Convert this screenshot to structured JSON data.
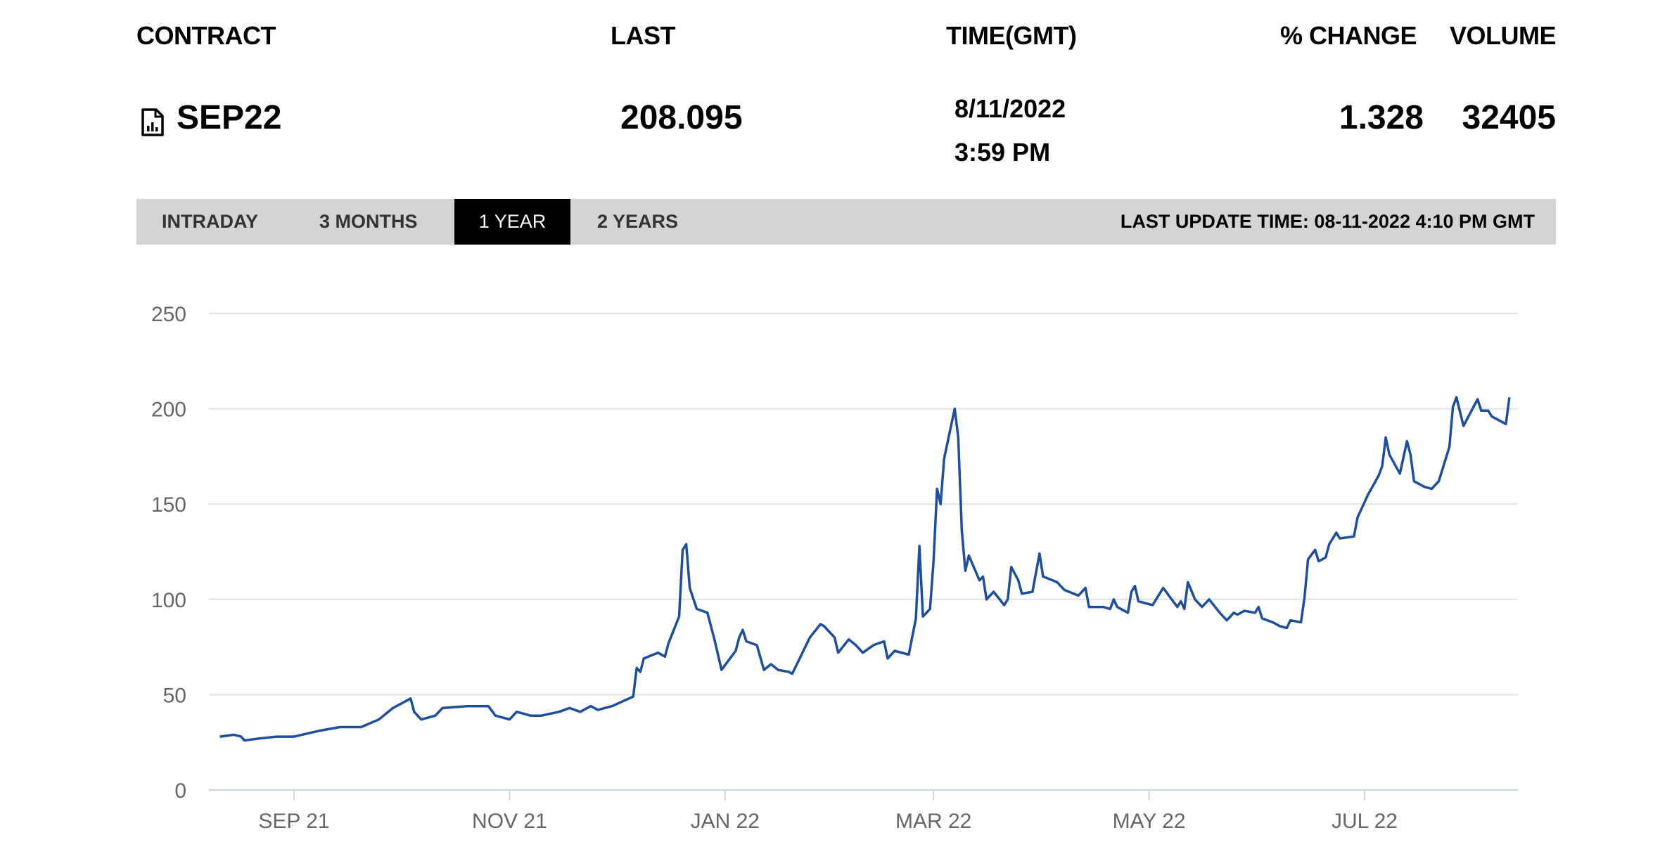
{
  "header": {
    "contract_label": "CONTRACT",
    "last_label": "LAST",
    "time_label": "TIME(GMT)",
    "change_label": "% CHANGE",
    "volume_label": "VOLUME"
  },
  "row": {
    "icon": "file-chart-icon",
    "contract": "SEP22",
    "last": "208.095",
    "date": "8/11/2022",
    "time": "3:59 PM",
    "change": "1.328",
    "volume": "32405"
  },
  "tabs": [
    {
      "label": "INTRADAY",
      "active": false
    },
    {
      "label": "3 MONTHS",
      "active": false
    },
    {
      "label": "1 YEAR",
      "active": true
    },
    {
      "label": "2 YEARS",
      "active": false
    }
  ],
  "last_update": "LAST UPDATE TIME: 08-11-2022 4:10 PM GMT",
  "chart_data": {
    "type": "line",
    "line_color": "#1f4e9c",
    "grid": true,
    "ylim": [
      0,
      250
    ],
    "yticks": [
      "0",
      "50",
      "100",
      "150",
      "200",
      "250"
    ],
    "xticks": [
      {
        "label": "SEP 21",
        "date": "2021-09-01"
      },
      {
        "label": "NOV 21",
        "date": "2021-11-01"
      },
      {
        "label": "JAN 22",
        "date": "2022-01-01"
      },
      {
        "label": "MAR 22",
        "date": "2022-03-01"
      },
      {
        "label": "MAY 22",
        "date": "2022-05-01"
      },
      {
        "label": "JUL 22",
        "date": "2022-07-01"
      }
    ],
    "xlim": [
      "2021-08-08",
      "2022-08-15"
    ],
    "points": [
      [
        "2021-08-11",
        28
      ],
      [
        "2021-08-15",
        29
      ],
      [
        "2021-08-17",
        28
      ],
      [
        "2021-08-18",
        26
      ],
      [
        "2021-08-22",
        27
      ],
      [
        "2021-08-27",
        28
      ],
      [
        "2021-09-01",
        28
      ],
      [
        "2021-09-08",
        31
      ],
      [
        "2021-09-14",
        33
      ],
      [
        "2021-09-20",
        33
      ],
      [
        "2021-09-25",
        37
      ],
      [
        "2021-09-29",
        43
      ],
      [
        "2021-10-04",
        48
      ],
      [
        "2021-10-05",
        41
      ],
      [
        "2021-10-07",
        37
      ],
      [
        "2021-10-11",
        39
      ],
      [
        "2021-10-13",
        43
      ],
      [
        "2021-10-20",
        44
      ],
      [
        "2021-10-26",
        44
      ],
      [
        "2021-10-28",
        39
      ],
      [
        "2021-11-01",
        37
      ],
      [
        "2021-11-03",
        41
      ],
      [
        "2021-11-07",
        39
      ],
      [
        "2021-11-10",
        39
      ],
      [
        "2021-11-15",
        41
      ],
      [
        "2021-11-18",
        43
      ],
      [
        "2021-11-21",
        41
      ],
      [
        "2021-11-24",
        44
      ],
      [
        "2021-11-26",
        42
      ],
      [
        "2021-11-30",
        44
      ],
      [
        "2021-12-06",
        49
      ],
      [
        "2021-12-07",
        64
      ],
      [
        "2021-12-08",
        62
      ],
      [
        "2021-12-09",
        69
      ],
      [
        "2021-12-13",
        72
      ],
      [
        "2021-12-15",
        70
      ],
      [
        "2021-12-16",
        77
      ],
      [
        "2021-12-19",
        91
      ],
      [
        "2021-12-20",
        126
      ],
      [
        "2021-12-21",
        129
      ],
      [
        "2021-12-22",
        106
      ],
      [
        "2021-12-24",
        95
      ],
      [
        "2021-12-27",
        93
      ],
      [
        "2021-12-29",
        79
      ],
      [
        "2021-12-31",
        63
      ],
      [
        "2022-01-04",
        73
      ],
      [
        "2022-01-05",
        80
      ],
      [
        "2022-01-06",
        84
      ],
      [
        "2022-01-07",
        78
      ],
      [
        "2022-01-10",
        76
      ],
      [
        "2022-01-12",
        63
      ],
      [
        "2022-01-14",
        66
      ],
      [
        "2022-01-16",
        63
      ],
      [
        "2022-01-19",
        62
      ],
      [
        "2022-01-20",
        61
      ],
      [
        "2022-01-25",
        80
      ],
      [
        "2022-01-28",
        87
      ],
      [
        "2022-01-29",
        86
      ],
      [
        "2022-02-01",
        80
      ],
      [
        "2022-02-02",
        72
      ],
      [
        "2022-02-05",
        79
      ],
      [
        "2022-02-07",
        76
      ],
      [
        "2022-02-09",
        72
      ],
      [
        "2022-02-12",
        76
      ],
      [
        "2022-02-15",
        78
      ],
      [
        "2022-02-16",
        69
      ],
      [
        "2022-02-18",
        73
      ],
      [
        "2022-02-22",
        71
      ],
      [
        "2022-02-24",
        90
      ],
      [
        "2022-02-25",
        128
      ],
      [
        "2022-02-26",
        91
      ],
      [
        "2022-02-28",
        95
      ],
      [
        "2022-03-01",
        120
      ],
      [
        "2022-03-02",
        158
      ],
      [
        "2022-03-03",
        150
      ],
      [
        "2022-03-04",
        174
      ],
      [
        "2022-03-07",
        200
      ],
      [
        "2022-03-08",
        185
      ],
      [
        "2022-03-09",
        136
      ],
      [
        "2022-03-10",
        115
      ],
      [
        "2022-03-11",
        123
      ],
      [
        "2022-03-14",
        110
      ],
      [
        "2022-03-15",
        112
      ],
      [
        "2022-03-16",
        100
      ],
      [
        "2022-03-18",
        104
      ],
      [
        "2022-03-21",
        97
      ],
      [
        "2022-03-22",
        100
      ],
      [
        "2022-03-23",
        117
      ],
      [
        "2022-03-25",
        110
      ],
      [
        "2022-03-26",
        103
      ],
      [
        "2022-03-29",
        104
      ],
      [
        "2022-03-31",
        124
      ],
      [
        "2022-04-01",
        112
      ],
      [
        "2022-04-05",
        109
      ],
      [
        "2022-04-07",
        105
      ],
      [
        "2022-04-11",
        102
      ],
      [
        "2022-04-13",
        106
      ],
      [
        "2022-04-14",
        96
      ],
      [
        "2022-04-18",
        96
      ],
      [
        "2022-04-20",
        95
      ],
      [
        "2022-04-21",
        100
      ],
      [
        "2022-04-22",
        96
      ],
      [
        "2022-04-25",
        93
      ],
      [
        "2022-04-26",
        104
      ],
      [
        "2022-04-27",
        107
      ],
      [
        "2022-04-28",
        99
      ],
      [
        "2022-05-02",
        97
      ],
      [
        "2022-05-05",
        106
      ],
      [
        "2022-05-09",
        96
      ],
      [
        "2022-05-10",
        99
      ],
      [
        "2022-05-11",
        95
      ],
      [
        "2022-05-12",
        109
      ],
      [
        "2022-05-14",
        100
      ],
      [
        "2022-05-16",
        96
      ],
      [
        "2022-05-18",
        100
      ],
      [
        "2022-05-21",
        93
      ],
      [
        "2022-05-23",
        89
      ],
      [
        "2022-05-25",
        93
      ],
      [
        "2022-05-26",
        92
      ],
      [
        "2022-05-28",
        94
      ],
      [
        "2022-05-31",
        93
      ],
      [
        "2022-06-01",
        96
      ],
      [
        "2022-06-02",
        90
      ],
      [
        "2022-06-05",
        88
      ],
      [
        "2022-06-07",
        86
      ],
      [
        "2022-06-09",
        85
      ],
      [
        "2022-06-10",
        89
      ],
      [
        "2022-06-13",
        88
      ],
      [
        "2022-06-14",
        101
      ],
      [
        "2022-06-15",
        121
      ],
      [
        "2022-06-17",
        126
      ],
      [
        "2022-06-18",
        120
      ],
      [
        "2022-06-20",
        122
      ],
      [
        "2022-06-21",
        129
      ],
      [
        "2022-06-23",
        135
      ],
      [
        "2022-06-24",
        132
      ],
      [
        "2022-06-28",
        133
      ],
      [
        "2022-06-29",
        143
      ],
      [
        "2022-07-02",
        155
      ],
      [
        "2022-07-05",
        165
      ],
      [
        "2022-07-06",
        170
      ],
      [
        "2022-07-07",
        185
      ],
      [
        "2022-07-08",
        176
      ],
      [
        "2022-07-11",
        166
      ],
      [
        "2022-07-13",
        183
      ],
      [
        "2022-07-14",
        176
      ],
      [
        "2022-07-15",
        162
      ],
      [
        "2022-07-18",
        159
      ],
      [
        "2022-07-20",
        158
      ],
      [
        "2022-07-22",
        162
      ],
      [
        "2022-07-25",
        180
      ],
      [
        "2022-07-26",
        201
      ],
      [
        "2022-07-27",
        206
      ],
      [
        "2022-07-29",
        191
      ],
      [
        "2022-08-02",
        205
      ],
      [
        "2022-08-03",
        199
      ],
      [
        "2022-08-05",
        199
      ],
      [
        "2022-08-06",
        196
      ],
      [
        "2022-08-10",
        192
      ],
      [
        "2022-08-11",
        206
      ]
    ]
  }
}
